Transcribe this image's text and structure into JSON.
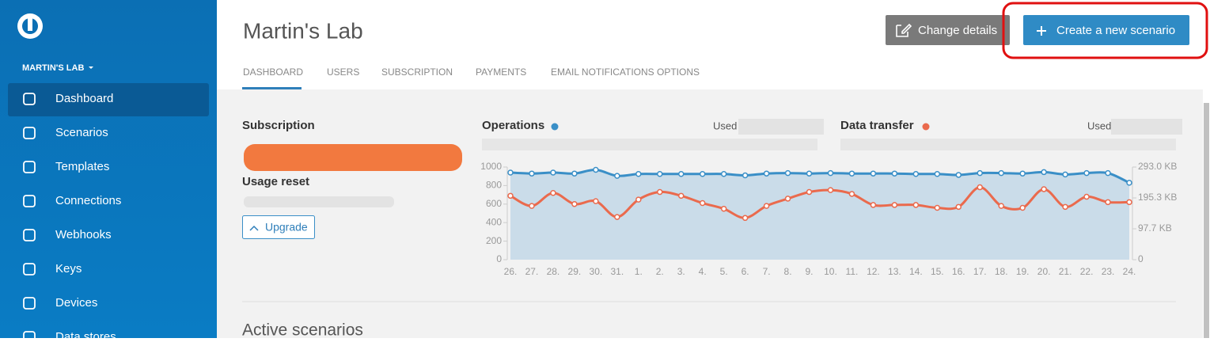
{
  "sidebar": {
    "org": "MARTIN'S LAB",
    "nav": [
      "Dashboard",
      "Scenarios",
      "Templates",
      "Connections",
      "Webhooks",
      "Keys",
      "Devices",
      "Data stores"
    ]
  },
  "header": {
    "title": "Martin's Lab",
    "tabs": [
      "DASHBOARD",
      "USERS",
      "SUBSCRIPTION",
      "PAYMENTS",
      "EMAIL NOTIFICATIONS OPTIONS"
    ],
    "change_details": "Change details",
    "create_scenario": "Create a new scenario"
  },
  "subscription": {
    "title": "Subscription",
    "usage_reset": "Usage reset",
    "upgrade": "Upgrade"
  },
  "used_label": "Used",
  "active_scenarios": "Active scenarios",
  "chart_data": {
    "type": "line",
    "categories": [
      "26.",
      "27.",
      "28.",
      "29.",
      "30.",
      "31.",
      "1.",
      "2.",
      "3.",
      "4.",
      "5.",
      "6.",
      "7.",
      "8.",
      "9.",
      "10.",
      "11.",
      "12.",
      "13.",
      "14.",
      "15.",
      "16.",
      "17.",
      "18.",
      "19.",
      "20.",
      "21.",
      "22.",
      "23.",
      "24."
    ],
    "series": [
      {
        "name": "Operations",
        "color": "#3a8fc7",
        "values": [
          940,
          930,
          940,
          930,
          970,
          905,
          925,
          925,
          925,
          925,
          925,
          910,
          930,
          935,
          930,
          935,
          930,
          930,
          930,
          925,
          925,
          915,
          935,
          935,
          930,
          945,
          920,
          935,
          935,
          830
        ]
      },
      {
        "name": "Data transfer",
        "color": "#ea6a4d",
        "axis": "y2",
        "values": [
          202,
          170,
          211,
          176,
          185,
          135,
          190,
          214,
          202,
          179,
          161,
          132,
          170,
          193,
          214,
          220,
          208,
          173,
          173,
          173,
          164,
          167,
          229,
          170,
          164,
          223,
          167,
          199,
          182,
          182
        ]
      }
    ],
    "ylim": [
      0,
      1000
    ],
    "yticks": [
      0,
      200,
      400,
      600,
      800,
      1000
    ],
    "y2lim": [
      0,
      293
    ],
    "y2ticks": [
      0,
      {
        "value": 97.7,
        "label": "97.7 KB"
      },
      {
        "value": 195.3,
        "label": "195.3 KB"
      },
      {
        "value": 293,
        "label": "293.0 KB"
      }
    ]
  }
}
